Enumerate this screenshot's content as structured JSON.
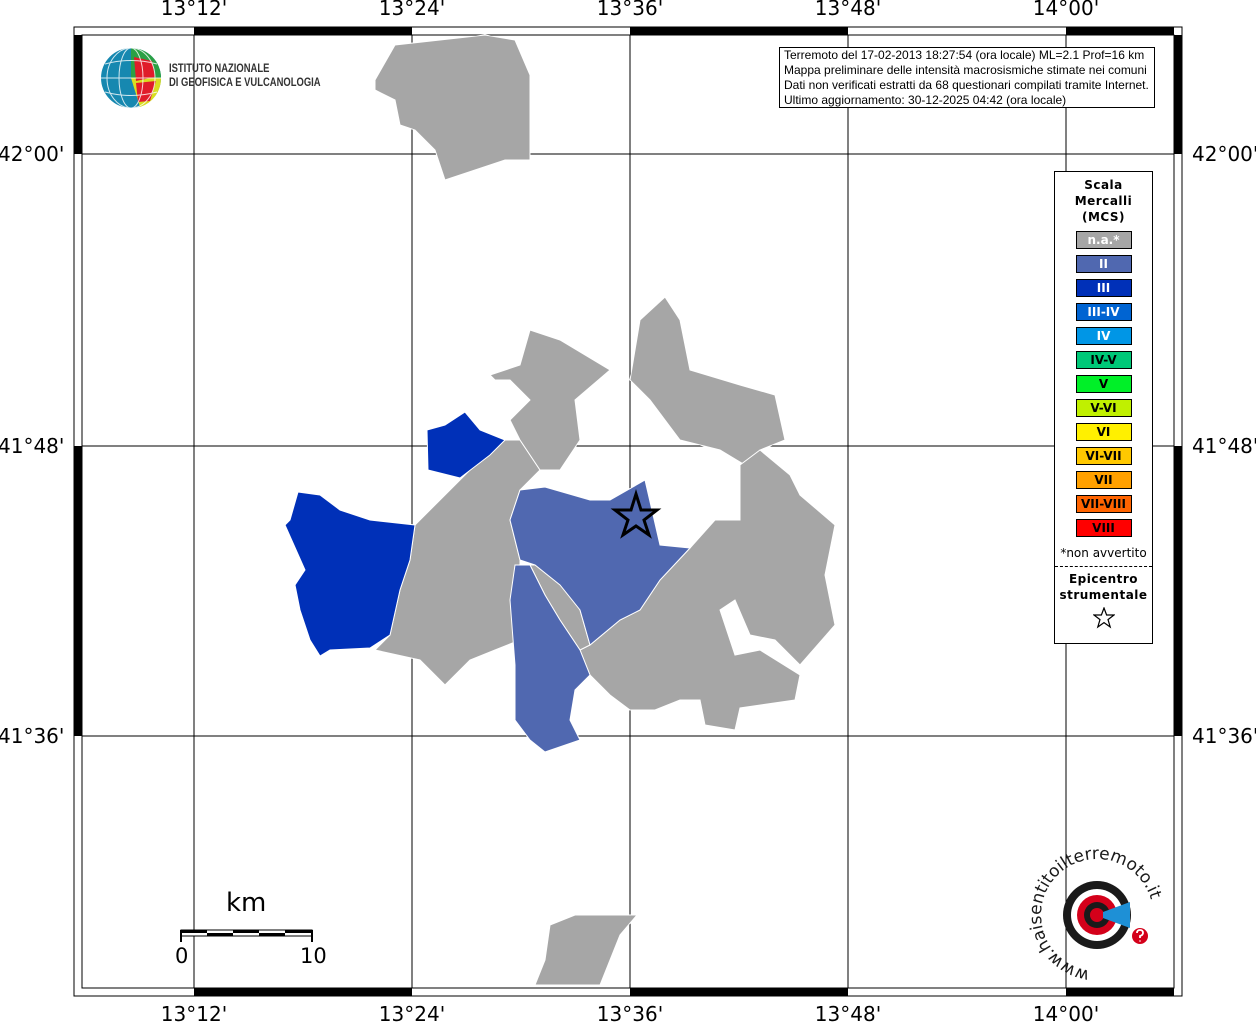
{
  "map": {
    "lon_ticks": [
      "13°12'",
      "13°24'",
      "13°36'",
      "13°48'",
      "14°00'"
    ],
    "lat_ticks": [
      "42°00'",
      "41°48'",
      "41°36'"
    ],
    "colors": {
      "background": "#ffffff",
      "na": "#a6a6a6",
      "II": "#5068b0",
      "III": "#0030b8",
      "border": "#ffffff"
    },
    "epicenter_icon": "star-outline-icon"
  },
  "info": {
    "lines": [
      "Terremoto del 17-02-2013 18:27:54 (ora locale) ML=2.1 Prof=16 km",
      "Mappa preliminare delle intensità macrosismiche stimate nei comuni",
      "Dati non verificati estratti da 68 questionari compilati tramite Internet.",
      "Ultimo aggiornamento: 30-12-2025 04:42 (ora locale)"
    ]
  },
  "logo_ingv": {
    "line1": "ISTITUTO NAZIONALE",
    "line2": "DI GEOFISICA E VULCANOLOGIA"
  },
  "legend": {
    "title1": "Scala",
    "title2": "Mercalli",
    "title3": "(MCS)",
    "items": [
      {
        "label": "n.a.*",
        "color": "#a6a6a6",
        "text": "#ffffff"
      },
      {
        "label": "II",
        "color": "#5068b0",
        "text": "#ffffff"
      },
      {
        "label": "III",
        "color": "#0030b8",
        "text": "#ffffff"
      },
      {
        "label": "III-IV",
        "color": "#0064d2",
        "text": "#ffffff"
      },
      {
        "label": "IV",
        "color": "#0096e6",
        "text": "#ffffff"
      },
      {
        "label": "IV-V",
        "color": "#00c878",
        "text": "#000000"
      },
      {
        "label": "V",
        "color": "#00f028",
        "text": "#000000"
      },
      {
        "label": "V-VI",
        "color": "#c0f000",
        "text": "#000000"
      },
      {
        "label": "VI",
        "color": "#fff000",
        "text": "#000000"
      },
      {
        "label": "VI-VII",
        "color": "#ffc800",
        "text": "#000000"
      },
      {
        "label": "VII",
        "color": "#ffa000",
        "text": "#000000"
      },
      {
        "label": "VII-VIII",
        "color": "#ff6400",
        "text": "#000000"
      },
      {
        "label": "VIII",
        "color": "#ff0000",
        "text": "#000000"
      }
    ],
    "note": "*non avvertito",
    "epi1": "Epicentro",
    "epi2": "strumentale",
    "epi_icon": "star-outline-icon"
  },
  "scalebar": {
    "unit": "km",
    "min": "0",
    "max": "10"
  },
  "logo_hsit": "www.haisentitoilterremoto.it"
}
